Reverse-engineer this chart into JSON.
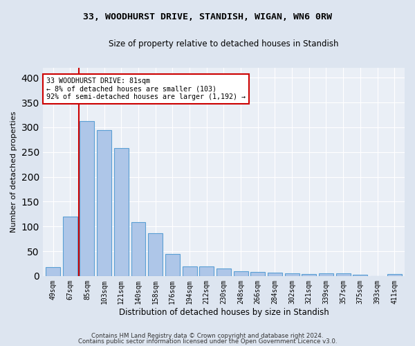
{
  "title1": "33, WOODHURST DRIVE, STANDISH, WIGAN, WN6 0RW",
  "title2": "Size of property relative to detached houses in Standish",
  "xlabel": "Distribution of detached houses by size in Standish",
  "ylabel": "Number of detached properties",
  "categories": [
    "49sqm",
    "67sqm",
    "85sqm",
    "103sqm",
    "121sqm",
    "140sqm",
    "158sqm",
    "176sqm",
    "194sqm",
    "212sqm",
    "230sqm",
    "248sqm",
    "266sqm",
    "284sqm",
    "302sqm",
    "321sqm",
    "339sqm",
    "357sqm",
    "375sqm",
    "393sqm",
    "411sqm"
  ],
  "values": [
    18,
    120,
    313,
    295,
    258,
    109,
    87,
    45,
    20,
    20,
    15,
    9,
    8,
    7,
    6,
    4,
    5,
    5,
    3,
    0,
    4
  ],
  "bar_color": "#aec6e8",
  "bar_edge_color": "#5a9fd4",
  "highlight_line_color": "#cc0000",
  "annotation_line1": "33 WOODHURST DRIVE: 81sqm",
  "annotation_line2": "← 8% of detached houses are smaller (103)",
  "annotation_line3": "92% of semi-detached houses are larger (1,192) →",
  "annotation_box_color": "#ffffff",
  "annotation_box_edge_color": "#cc0000",
  "ylim": [
    0,
    420
  ],
  "yticks": [
    0,
    50,
    100,
    150,
    200,
    250,
    300,
    350,
    400
  ],
  "footer1": "Contains HM Land Registry data © Crown copyright and database right 2024.",
  "footer2": "Contains public sector information licensed under the Open Government Licence v3.0.",
  "bg_color": "#dde5f0",
  "plot_bg_color": "#eaeff6"
}
